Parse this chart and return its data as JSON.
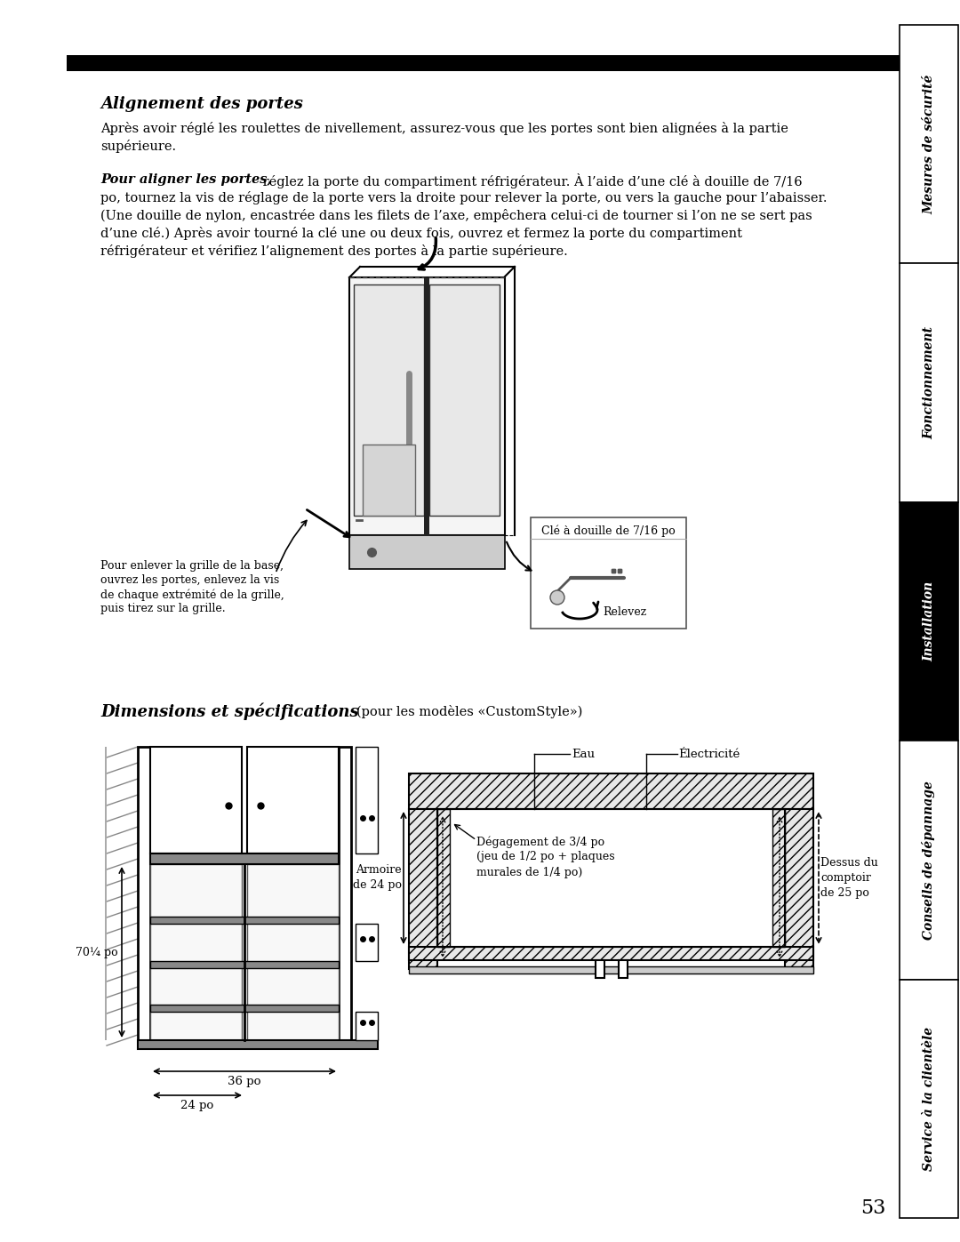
{
  "page_bg": "#ffffff",
  "sidebar_sections": [
    {
      "label": "Mesures de sécurité",
      "bg": "#ffffff",
      "text": "#000000"
    },
    {
      "label": "Fonctionnement",
      "bg": "#ffffff",
      "text": "#000000"
    },
    {
      "label": "Installation",
      "bg": "#000000",
      "text": "#ffffff"
    },
    {
      "label": "Conseils de dépannage",
      "bg": "#ffffff",
      "text": "#000000"
    },
    {
      "label": "Service à la clientèle",
      "bg": "#ffffff",
      "text": "#000000"
    }
  ],
  "section1_title": "Alignement des portes",
  "para1_l1": "Après avoir réglé les roulettes de nivellement, assurez-vous que les portes sont bien alignées à la partie",
  "para1_l2": "supérieure.",
  "para2_bold": "Pour aligner les portes,",
  "para2_l1": " réglez la porte du compartiment réfrigérateur. À l’aide d’une clé à douille de 7/16",
  "para2_l2": "po, tournez la vis de réglage de la porte vers la droite pour relever la porte, ou vers la gauche pour l’abaisser.",
  "para2_l3": "(Une douille de nylon, encastrée dans les filets de l’axe, empêchera celui-ci de tourner si l’on ne se sert pas",
  "para2_l4": "d’une clé.) Après avoir tourné la clé une ou deux fois, ouvrez et fermez la porte du compartiment",
  "para2_l5": "réfrigérateur et vérifiez l’alignement des portes à la partie supérieure.",
  "cap_left_l1": "Pour enlever la grille de la base,",
  "cap_left_l2": "ouvrez les portes, enlevez la vis",
  "cap_left_l3": "de chaque extrémité de la grille,",
  "cap_left_l4": "puis tirez sur la grille.",
  "cap_key": "Clé à douille de 7/16 po",
  "cap_relevez": "Relevez",
  "sec2_title": "Dimensions et spécifications",
  "sec2_sub": "(pour les modèles «CustomStyle»)",
  "dim1": "70¼ po",
  "dim2": "36 po",
  "dim3": "24 po",
  "lbl_armoire": "Armoire\nde 24 po",
  "lbl_eau": "Eau",
  "lbl_elec": "Électricité",
  "lbl_degagement": "Dégagement de 3/4 po\n(jeu de 1/2 po + plaques\nmurales de 1/4 po)",
  "lbl_dessus": "Dessus du\ncomptoir\nde 25 po",
  "page_num": "53"
}
